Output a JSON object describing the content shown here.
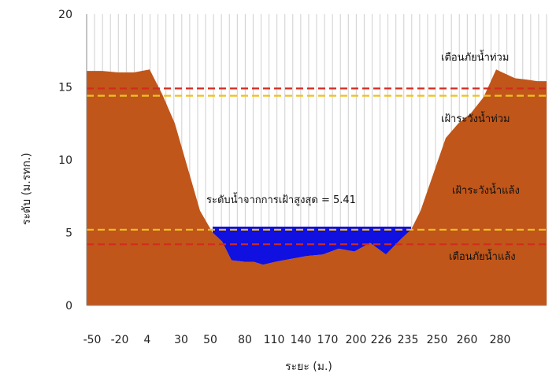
{
  "chart_data": {
    "type": "area",
    "title": "",
    "xlabel": "ระยะ (ม.)",
    "ylabel": "ระดับ (ม.รทก.)",
    "ylim": [
      0,
      20
    ],
    "y_ticks": [
      "0",
      "5",
      "10",
      "15",
      "20"
    ],
    "x_tick_labels": [
      "-50",
      "-20",
      "4",
      "30",
      "50",
      "80",
      "110",
      "140",
      "170",
      "200",
      "226",
      "235",
      "250",
      "260",
      "280"
    ],
    "grid": "vertical",
    "series": [
      {
        "kind": "ground",
        "color": "#c0561a",
        "x": [
          0,
          0.5,
          1,
          1.5,
          2,
          2.4,
          2.8,
          3.2,
          3.6,
          4,
          4.3,
          4.6,
          5,
          5.3,
          5.6,
          6,
          6.5,
          7,
          7.5,
          8,
          8.5,
          9,
          9.5,
          10,
          10.3,
          10.6,
          11,
          11.4,
          11.8,
          12.2,
          12.6,
          13,
          13.3,
          13.6,
          14,
          14.3,
          14.6
        ],
        "y": [
          16.1,
          16.1,
          16.0,
          16.0,
          16.2,
          14.5,
          12.5,
          9.5,
          6.5,
          5.0,
          4.4,
          3.1,
          3.0,
          3.0,
          2.8,
          3.0,
          3.2,
          3.4,
          3.5,
          3.9,
          3.7,
          4.3,
          3.5,
          4.6,
          5.2,
          6.5,
          9.0,
          11.5,
          12.5,
          13.2,
          14.3,
          16.2,
          15.9,
          15.6,
          15.5,
          15.4,
          15.4
        ]
      },
      {
        "kind": "water",
        "color": "#1010e0",
        "level": 5.41,
        "x_range": [
          4,
          10.3
        ]
      }
    ],
    "reference_lines": [
      {
        "y": 14.9,
        "color": "#d42a1e",
        "style": "dashed",
        "label": "เตือนภัยน้ำท่วม"
      },
      {
        "y": 14.4,
        "color": "#f0c020",
        "style": "dashed",
        "label": "เฝ้าระวังน้ำท่วม"
      },
      {
        "y": 5.2,
        "color": "#f0c020",
        "style": "dashed",
        "label": "เฝ้าระวังน้ำแล้ง"
      },
      {
        "y": 4.2,
        "color": "#d42a1e",
        "style": "dashed",
        "label": "เตือนภัยน้ำแล้ง"
      }
    ],
    "annotations": [
      {
        "text": "ระดับน้ำจากการเฝ้าสูงสุด = 5.41"
      }
    ]
  }
}
